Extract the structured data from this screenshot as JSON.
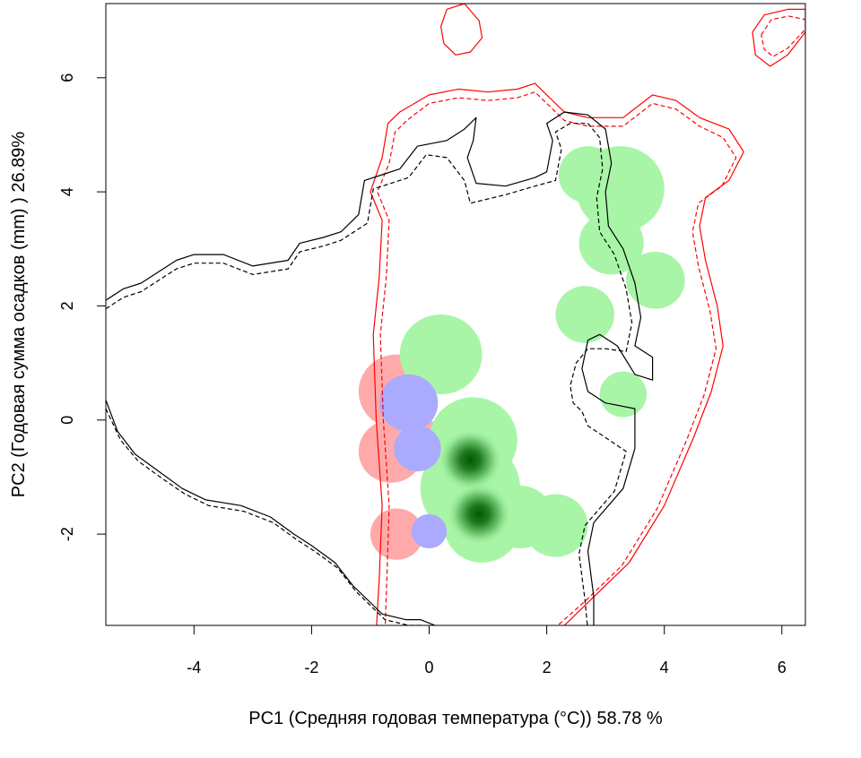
{
  "chart_data": {
    "type": "heatmap",
    "xlabel": "PC1 (Средняя годовая температура (°C)) 58.78 %",
    "ylabel": "PC2 (Годовая сумма осадков  (mm) ) 26.89%",
    "xlim": [
      -5.5,
      6.4
    ],
    "ylim": [
      -3.6,
      7.3
    ],
    "x_ticks": [
      -4,
      -2,
      0,
      2,
      4,
      6
    ],
    "y_ticks": [
      -2,
      0,
      2,
      4,
      6
    ],
    "x_tick_labels": [
      "-4",
      "-2",
      "0",
      "2",
      "4",
      "6"
    ],
    "y_tick_labels": [
      "-2",
      "0",
      "2",
      "4",
      "6"
    ],
    "grid": false,
    "colors": {
      "group_a": "#ff0000",
      "group_b": "#000000",
      "region_overlap_only_a": "#ffaaaa",
      "region_overlap_both": "#aaaaff",
      "region_overlap_only_b": "#a8f5a8",
      "density_peak": "#005a00"
    },
    "contours": [
      {
        "group": "a",
        "line": "solid",
        "points": [
          [
            -0.9,
            -3.7
          ],
          [
            -0.85,
            -2.8
          ],
          [
            -0.8,
            -1.5
          ],
          [
            -0.9,
            0
          ],
          [
            -0.95,
            1.5
          ],
          [
            -0.85,
            2.5
          ],
          [
            -0.8,
            3.5
          ],
          [
            -1.0,
            4.0
          ],
          [
            -0.8,
            4.6
          ],
          [
            -0.7,
            5.2
          ],
          [
            -0.5,
            5.4
          ],
          [
            0,
            5.7
          ],
          [
            0.5,
            5.8
          ],
          [
            1.0,
            5.75
          ],
          [
            1.5,
            5.8
          ],
          [
            1.8,
            5.9
          ],
          [
            2.0,
            5.7
          ],
          [
            2.3,
            5.4
          ],
          [
            2.7,
            5.3
          ],
          [
            3.3,
            5.3
          ],
          [
            3.8,
            5.7
          ],
          [
            4.2,
            5.6
          ],
          [
            4.6,
            5.3
          ],
          [
            5.1,
            5.1
          ],
          [
            5.35,
            4.7
          ],
          [
            5.1,
            4.2
          ],
          [
            4.7,
            3.9
          ],
          [
            4.6,
            3.4
          ],
          [
            4.7,
            2.8
          ],
          [
            4.9,
            2.0
          ],
          [
            5.0,
            1.3
          ],
          [
            4.8,
            0.5
          ],
          [
            4.5,
            -0.3
          ],
          [
            4.0,
            -1.5
          ],
          [
            3.4,
            -2.5
          ],
          [
            2.8,
            -3.1
          ],
          [
            2.2,
            -3.7
          ]
        ]
      },
      {
        "group": "a",
        "line": "dashed",
        "points": [
          [
            -0.75,
            -3.7
          ],
          [
            -0.72,
            -2.8
          ],
          [
            -0.68,
            -1.5
          ],
          [
            -0.78,
            0
          ],
          [
            -0.83,
            1.5
          ],
          [
            -0.73,
            2.5
          ],
          [
            -0.68,
            3.5
          ],
          [
            -0.88,
            4.0
          ],
          [
            -0.68,
            4.5
          ],
          [
            -0.58,
            5.05
          ],
          [
            -0.38,
            5.25
          ],
          [
            0,
            5.55
          ],
          [
            0.5,
            5.65
          ],
          [
            1.0,
            5.6
          ],
          [
            1.5,
            5.65
          ],
          [
            1.8,
            5.75
          ],
          [
            2.0,
            5.55
          ],
          [
            2.3,
            5.25
          ],
          [
            2.7,
            5.15
          ],
          [
            3.3,
            5.15
          ],
          [
            3.8,
            5.55
          ],
          [
            4.2,
            5.45
          ],
          [
            4.6,
            5.15
          ],
          [
            5.0,
            4.95
          ],
          [
            5.22,
            4.6
          ],
          [
            4.98,
            4.1
          ],
          [
            4.58,
            3.8
          ],
          [
            4.48,
            3.3
          ],
          [
            4.58,
            2.7
          ],
          [
            4.78,
            1.9
          ],
          [
            4.88,
            1.25
          ],
          [
            4.68,
            0.45
          ],
          [
            4.38,
            -0.35
          ],
          [
            3.88,
            -1.55
          ],
          [
            3.28,
            -2.55
          ],
          [
            2.68,
            -3.15
          ],
          [
            2.08,
            -3.7
          ]
        ]
      },
      {
        "group": "a",
        "line": "solid",
        "points": [
          [
            0.25,
            6.6
          ],
          [
            0.2,
            6.9
          ],
          [
            0.3,
            7.2
          ],
          [
            0.6,
            7.3
          ],
          [
            0.85,
            7.0
          ],
          [
            0.9,
            6.7
          ],
          [
            0.7,
            6.45
          ],
          [
            0.45,
            6.4
          ],
          [
            0.25,
            6.6
          ]
        ]
      },
      {
        "group": "a",
        "line": "solid",
        "points": [
          [
            5.5,
            6.8
          ],
          [
            5.7,
            7.1
          ],
          [
            6.1,
            7.2
          ],
          [
            6.4,
            7.2
          ],
          [
            6.4,
            6.8
          ],
          [
            6.1,
            6.4
          ],
          [
            5.8,
            6.2
          ],
          [
            5.55,
            6.4
          ],
          [
            5.5,
            6.8
          ]
        ]
      },
      {
        "group": "a",
        "line": "dashed",
        "points": [
          [
            5.65,
            6.75
          ],
          [
            5.82,
            7.02
          ],
          [
            6.12,
            7.08
          ],
          [
            6.4,
            7.02
          ],
          [
            6.4,
            6.85
          ],
          [
            6.1,
            6.52
          ],
          [
            5.85,
            6.37
          ],
          [
            5.7,
            6.5
          ],
          [
            5.65,
            6.75
          ]
        ]
      },
      {
        "group": "b",
        "line": "solid",
        "points": [
          [
            -5.5,
            2.1
          ],
          [
            -5.2,
            2.3
          ],
          [
            -4.9,
            2.4
          ],
          [
            -4.6,
            2.6
          ],
          [
            -4.3,
            2.8
          ],
          [
            -4.0,
            2.9
          ],
          [
            -3.5,
            2.9
          ],
          [
            -3.0,
            2.7
          ],
          [
            -2.4,
            2.8
          ],
          [
            -2.2,
            3.1
          ],
          [
            -1.8,
            3.2
          ],
          [
            -1.5,
            3.3
          ],
          [
            -1.2,
            3.6
          ],
          [
            -1.1,
            4.2
          ],
          [
            -0.8,
            4.3
          ],
          [
            -0.5,
            4.4
          ],
          [
            -0.2,
            4.8
          ],
          [
            0.3,
            4.9
          ],
          [
            0.6,
            5.1
          ],
          [
            0.8,
            5.3
          ],
          [
            0.75,
            4.9
          ],
          [
            0.65,
            4.6
          ],
          [
            0.8,
            4.15
          ],
          [
            1.3,
            4.1
          ],
          [
            1.8,
            4.25
          ],
          [
            2.0,
            4.35
          ],
          [
            2.1,
            4.9
          ],
          [
            2.0,
            5.2
          ],
          [
            2.3,
            5.4
          ],
          [
            2.7,
            5.35
          ],
          [
            3.0,
            5.1
          ],
          [
            3.1,
            4.5
          ],
          [
            3.0,
            4.0
          ],
          [
            3.05,
            3.4
          ],
          [
            3.3,
            3.0
          ],
          [
            3.5,
            2.4
          ],
          [
            3.6,
            1.8
          ],
          [
            3.5,
            1.3
          ],
          [
            3.8,
            1.1
          ],
          [
            3.8,
            0.7
          ],
          [
            3.5,
            0.8
          ],
          [
            3.2,
            1.3
          ],
          [
            2.9,
            1.5
          ],
          [
            2.7,
            1.4
          ],
          [
            2.6,
            0.9
          ],
          [
            2.7,
            0.5
          ],
          [
            3.0,
            0.3
          ],
          [
            3.5,
            0.2
          ],
          [
            3.5,
            -0.5
          ],
          [
            3.3,
            -1.2
          ],
          [
            2.8,
            -1.8
          ],
          [
            2.7,
            -2.3
          ],
          [
            2.8,
            -3.1
          ],
          [
            2.8,
            -3.7
          ]
        ]
      },
      {
        "group": "b",
        "line": "dashed",
        "points": [
          [
            -5.5,
            1.95
          ],
          [
            -5.2,
            2.15
          ],
          [
            -4.9,
            2.25
          ],
          [
            -4.6,
            2.45
          ],
          [
            -4.3,
            2.65
          ],
          [
            -4.0,
            2.75
          ],
          [
            -3.5,
            2.75
          ],
          [
            -3.0,
            2.55
          ],
          [
            -2.4,
            2.65
          ],
          [
            -2.2,
            2.95
          ],
          [
            -1.8,
            3.05
          ],
          [
            -1.5,
            3.15
          ],
          [
            -1.05,
            3.45
          ],
          [
            -0.95,
            4.05
          ],
          [
            -0.65,
            4.15
          ],
          [
            -0.35,
            4.25
          ],
          [
            -0.05,
            4.65
          ],
          [
            0.3,
            4.6
          ],
          [
            0.6,
            4.2
          ],
          [
            0.7,
            3.8
          ],
          [
            1.3,
            3.95
          ],
          [
            1.8,
            4.1
          ],
          [
            2.15,
            4.2
          ],
          [
            2.25,
            4.75
          ],
          [
            2.15,
            5.05
          ],
          [
            2.4,
            5.2
          ],
          [
            2.7,
            5.2
          ],
          [
            2.9,
            4.95
          ],
          [
            2.95,
            4.4
          ],
          [
            2.85,
            3.9
          ],
          [
            2.9,
            3.3
          ],
          [
            3.15,
            2.9
          ],
          [
            3.35,
            2.3
          ],
          [
            3.45,
            1.7
          ],
          [
            3.35,
            1.2
          ],
          [
            3.0,
            1.25
          ],
          [
            2.7,
            1.25
          ],
          [
            2.5,
            1.0
          ],
          [
            2.4,
            0.6
          ],
          [
            2.45,
            0.3
          ],
          [
            2.6,
            0.15
          ],
          [
            2.7,
            -0.1
          ],
          [
            3.35,
            -0.55
          ],
          [
            3.15,
            -1.25
          ],
          [
            2.65,
            -1.85
          ],
          [
            2.55,
            -2.35
          ],
          [
            2.65,
            -3.15
          ],
          [
            2.7,
            -3.7
          ]
        ]
      },
      {
        "group": "b",
        "line": "solid",
        "points": [
          [
            -5.5,
            0.35
          ],
          [
            -5.3,
            -0.2
          ],
          [
            -5.0,
            -0.6
          ],
          [
            -4.6,
            -0.9
          ],
          [
            -4.2,
            -1.2
          ],
          [
            -3.8,
            -1.4
          ],
          [
            -3.2,
            -1.5
          ],
          [
            -2.7,
            -1.7
          ],
          [
            -2.3,
            -2.0
          ],
          [
            -2.0,
            -2.2
          ],
          [
            -1.6,
            -2.5
          ],
          [
            -1.3,
            -2.9
          ],
          [
            -1.0,
            -3.2
          ],
          [
            -0.8,
            -3.4
          ],
          [
            -0.4,
            -3.5
          ],
          [
            -0.15,
            -3.5
          ],
          [
            0.1,
            -3.6
          ]
        ]
      },
      {
        "group": "b",
        "line": "dashed",
        "points": [
          [
            -5.5,
            0.2
          ],
          [
            -5.25,
            -0.35
          ],
          [
            -4.95,
            -0.72
          ],
          [
            -4.55,
            -1.02
          ],
          [
            -4.15,
            -1.3
          ],
          [
            -3.75,
            -1.5
          ],
          [
            -3.15,
            -1.6
          ],
          [
            -2.65,
            -1.8
          ],
          [
            -2.25,
            -2.1
          ],
          [
            -1.95,
            -2.3
          ],
          [
            -1.55,
            -2.6
          ],
          [
            -1.25,
            -3.0
          ],
          [
            -0.95,
            -3.3
          ],
          [
            -0.75,
            -3.5
          ],
          [
            -0.35,
            -3.6
          ],
          [
            -0.1,
            -3.6
          ],
          [
            0.15,
            -3.7
          ]
        ]
      }
    ],
    "regions": [
      {
        "fill": "region_overlap_only_a",
        "circles": [
          [
            -0.55,
            0.5,
            0.65
          ],
          [
            -0.65,
            -0.55,
            0.55
          ],
          [
            -0.55,
            -2.0,
            0.45
          ],
          [
            -0.25,
            -0.35,
            0.45
          ]
        ]
      },
      {
        "fill": "region_overlap_only_b",
        "circles": [
          [
            0.2,
            1.15,
            0.7
          ],
          [
            0.75,
            -0.35,
            0.75
          ],
          [
            0.7,
            -1.2,
            0.85
          ],
          [
            0.9,
            -1.85,
            0.65
          ],
          [
            1.55,
            -1.7,
            0.55
          ],
          [
            2.15,
            -1.85,
            0.55
          ],
          [
            3.25,
            4.05,
            0.75
          ],
          [
            3.1,
            3.1,
            0.55
          ],
          [
            3.85,
            2.45,
            0.5
          ],
          [
            2.65,
            1.85,
            0.5
          ],
          [
            3.3,
            0.45,
            0.4
          ],
          [
            2.7,
            4.3,
            0.5
          ]
        ]
      },
      {
        "fill": "region_overlap_both",
        "circles": [
          [
            -0.35,
            0.3,
            0.5
          ],
          [
            -0.2,
            -0.5,
            0.4
          ],
          [
            0.0,
            -1.95,
            0.3
          ]
        ]
      }
    ],
    "density_peaks": [
      [
        0.7,
        -0.7
      ],
      [
        0.85,
        -1.65
      ]
    ]
  }
}
